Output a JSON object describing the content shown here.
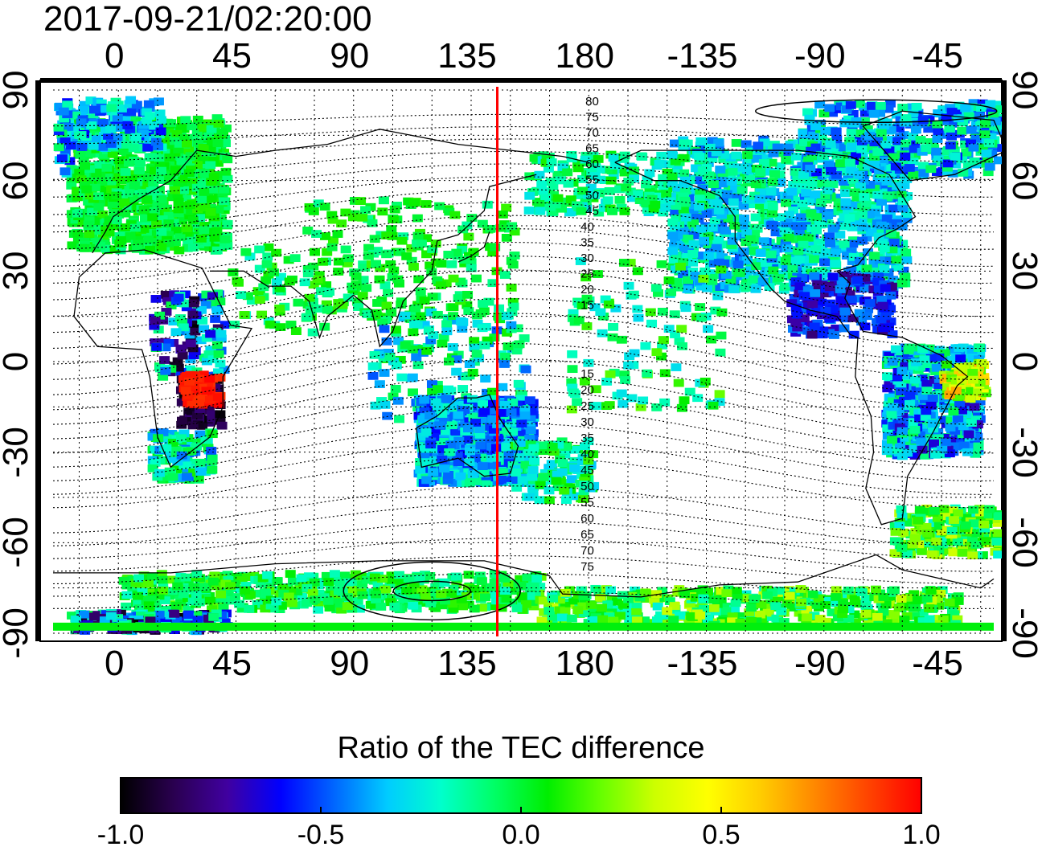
{
  "timestamp": "2017-09-21/02:20:00",
  "map": {
    "x_ticks_top": [
      "0",
      "45",
      "90",
      "135",
      "180",
      "-135",
      "-90",
      "-45"
    ],
    "x_ticks_bottom": [
      "0",
      "45",
      "90",
      "135",
      "180",
      "-135",
      "-90",
      "-45"
    ],
    "y_ticks_left": [
      "90",
      "60",
      "30",
      "0",
      "-30",
      "-60",
      "-90"
    ],
    "y_ticks_right": [
      "90",
      "60",
      "30",
      "0",
      "-30",
      "-60",
      "-90"
    ],
    "lon_range": [
      -25,
      335
    ],
    "lat_range": [
      -90,
      90
    ],
    "red_meridian_lon": 145,
    "red_meridian_color": "#ff0000",
    "contour_labels_north": [
      "80",
      "75",
      "70",
      "65",
      "60",
      "55",
      "50",
      "45",
      "40",
      "35",
      "30",
      "25",
      "20",
      "15"
    ],
    "contour_labels_south": [
      "15",
      "20",
      "25",
      "30",
      "35",
      "40",
      "45",
      "50",
      "55",
      "60",
      "65",
      "70",
      "75"
    ]
  },
  "colorbar": {
    "title": "Ratio of the TEC difference",
    "ticks": [
      "-1.0",
      "-0.5",
      "0.0",
      "0.5",
      "1.0"
    ],
    "range": [
      -1.0,
      1.0
    ],
    "colors": [
      "#000000",
      "#2a0050",
      "#4000a0",
      "#0000ff",
      "#0066ff",
      "#00ccff",
      "#00ffcc",
      "#00ff66",
      "#00ee00",
      "#66ff00",
      "#ccff00",
      "#ffff00",
      "#ffcc00",
      "#ff8800",
      "#ff4400",
      "#ff0000"
    ]
  }
}
